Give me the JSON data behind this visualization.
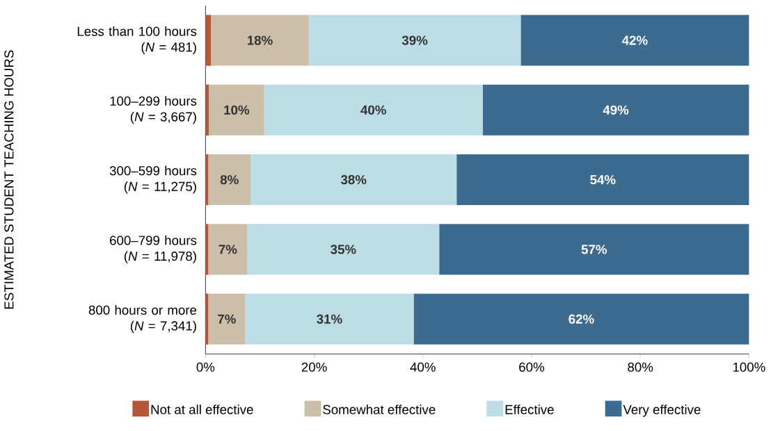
{
  "chart_data": {
    "type": "bar",
    "orientation": "horizontal",
    "stacked": true,
    "ylabel": "ESTIMATED STUDENT TEACHING HOURS",
    "categories": [
      "Less than 100 hours\n(*N* = 481)",
      "100–299 hours\n(*N* = 3,667)",
      "300–599 hours\n(*N* = 11,275)",
      "600–799 hours\n(*N* = 11,978)",
      "800 hours or more\n(*N* = 7,341)"
    ],
    "series": [
      {
        "name": "Not at all effective",
        "color": "#b5573a",
        "values": [
          1,
          0.6,
          0.5,
          0.5,
          0.5
        ]
      },
      {
        "name": "Somewhat effective",
        "color": "#cbbfa9",
        "values": [
          18,
          10.2,
          7.8,
          7.2,
          6.8
        ],
        "value_labels": [
          "18%",
          "10%",
          "8%",
          "7%",
          "7%"
        ]
      },
      {
        "name": "Effective",
        "color": "#bcdde6",
        "values": [
          39,
          40.2,
          37.9,
          35.3,
          31
        ],
        "value_labels": [
          "39%",
          "40%",
          "38%",
          "35%",
          "31%"
        ]
      },
      {
        "name": "Very effective",
        "color": "#3d6a8f",
        "values": [
          42,
          49,
          53.8,
          57,
          61.7
        ],
        "value_labels": [
          "42%",
          "49%",
          "54%",
          "57%",
          "62%"
        ]
      }
    ],
    "xlim": [
      0,
      100
    ],
    "xticks": [
      {
        "value": 0,
        "label": "0%"
      },
      {
        "value": 20,
        "label": "20%"
      },
      {
        "value": 40,
        "label": "40%"
      },
      {
        "value": 60,
        "label": "60%"
      },
      {
        "value": 80,
        "label": "80%"
      },
      {
        "value": 100,
        "label": "100%"
      }
    ],
    "legend": "bottom"
  }
}
